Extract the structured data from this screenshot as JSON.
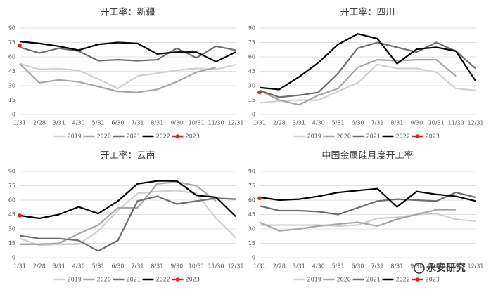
{
  "chart_data": [
    {
      "type": "line",
      "title": "开工率：新疆",
      "categories": [
        "1/31",
        "2/28",
        "3/31",
        "4/30",
        "5/31",
        "6/30",
        "7/31",
        "8/31",
        "9/30",
        "10/31",
        "11/30",
        "12/31"
      ],
      "ylim": [
        0,
        90
      ],
      "yticks": [
        0,
        15,
        30,
        45,
        60,
        75,
        90
      ],
      "grid": true,
      "series": [
        {
          "name": "2019",
          "color": "#d0d0d0",
          "values": [
            53,
            47,
            47.5,
            46,
            37,
            27,
            40,
            43,
            46,
            48,
            47,
            52
          ]
        },
        {
          "name": "2020",
          "color": "#a6a6a6",
          "values": [
            53,
            33,
            36,
            34,
            29,
            24,
            23,
            26,
            34,
            44,
            49,
            null
          ]
        },
        {
          "name": "2021",
          "color": "#6e6e6e",
          "values": [
            70,
            64,
            69,
            66,
            56,
            57,
            56,
            57,
            69,
            59,
            71,
            67
          ]
        },
        {
          "name": "2022",
          "color": "#000000",
          "values": [
            76,
            74,
            71,
            67,
            73,
            75,
            74,
            63,
            65,
            65,
            55,
            65
          ]
        },
        {
          "name": "2023",
          "color": "#e0201b",
          "marker": true,
          "values": [
            72,
            null,
            null,
            null,
            null,
            null,
            null,
            null,
            null,
            null,
            null,
            null
          ]
        }
      ]
    },
    {
      "type": "line",
      "title": "开工率：四川",
      "categories": [
        "1/31",
        "2/28",
        "3/31",
        "4/30",
        "5/31",
        "6/30",
        "7/31",
        "8/31",
        "9/30",
        "10/31",
        "11/30",
        "12/31"
      ],
      "ylim": [
        0,
        90
      ],
      "yticks": [
        0,
        15,
        30,
        45,
        60,
        75,
        90
      ],
      "grid": true,
      "series": [
        {
          "name": "2019",
          "color": "#d0d0d0",
          "values": [
            12,
            14,
            15,
            15,
            24,
            33,
            52,
            48,
            48,
            44,
            27,
            25
          ]
        },
        {
          "name": "2020",
          "color": "#a6a6a6",
          "values": [
            25,
            15,
            10,
            20,
            27,
            49,
            57,
            56,
            57,
            57,
            40,
            null
          ]
        },
        {
          "name": "2021",
          "color": "#6e6e6e",
          "values": [
            25,
            18,
            20,
            23,
            43,
            69,
            75,
            70,
            65,
            75,
            66,
            48
          ]
        },
        {
          "name": "2022",
          "color": "#000000",
          "values": [
            28,
            26,
            39,
            54,
            73,
            84,
            79,
            53,
            68,
            70,
            66,
            35
          ]
        },
        {
          "name": "2023",
          "color": "#e0201b",
          "marker": true,
          "values": [
            23,
            null,
            null,
            null,
            null,
            null,
            null,
            null,
            null,
            null,
            null,
            null
          ]
        }
      ]
    },
    {
      "type": "line",
      "title": "开工率：云南",
      "categories": [
        "1/31",
        "2/28",
        "3/31",
        "4/30",
        "5/31",
        "6/30",
        "7/31",
        "8/31",
        "9/30",
        "10/31",
        "11/30",
        "12/31"
      ],
      "ylim": [
        0,
        90
      ],
      "yticks": [
        0,
        15,
        30,
        45,
        60,
        75,
        90
      ],
      "grid": true,
      "series": [
        {
          "name": "2019",
          "color": "#d0d0d0",
          "values": [
            20,
            13,
            14,
            14,
            28,
            49,
            67,
            69,
            70,
            67,
            41,
            21
          ]
        },
        {
          "name": "2020",
          "color": "#a6a6a6",
          "values": [
            14,
            14,
            15,
            25,
            34,
            52,
            52,
            77,
            79,
            75,
            59,
            null
          ]
        },
        {
          "name": "2021",
          "color": "#6e6e6e",
          "values": [
            23,
            20,
            20,
            18,
            7,
            18,
            59,
            64,
            56,
            59,
            62,
            61
          ]
        },
        {
          "name": "2022",
          "color": "#000000",
          "values": [
            44,
            41,
            45,
            53,
            46,
            59,
            77,
            80,
            80,
            65,
            63,
            43
          ]
        },
        {
          "name": "2023",
          "color": "#e0201b",
          "marker": true,
          "values": [
            44,
            null,
            null,
            null,
            null,
            null,
            null,
            null,
            null,
            null,
            null,
            null
          ]
        }
      ]
    },
    {
      "type": "line",
      "title": "中国金属硅月度开工率",
      "categories": [
        "1/31",
        "2/28",
        "3/31",
        "4/30",
        "5/31",
        "6/30",
        "7/31",
        "8/31",
        "9/30",
        "10/31",
        "11/30",
        "12/31"
      ],
      "ylim": [
        0,
        90
      ],
      "yticks": [
        0,
        15,
        30,
        45,
        60,
        75,
        90
      ],
      "grid": true,
      "series": [
        {
          "name": "2019",
          "color": "#d0d0d0",
          "values": [
            34,
            34,
            34,
            34,
            33,
            34,
            41,
            42,
            45,
            46,
            40,
            38
          ]
        },
        {
          "name": "2020",
          "color": "#a6a6a6",
          "values": [
            37,
            28,
            30,
            33,
            35,
            37,
            33,
            40,
            45,
            50,
            50,
            null
          ]
        },
        {
          "name": "2021",
          "color": "#6e6e6e",
          "values": [
            54,
            49,
            49,
            48,
            45,
            52,
            59,
            61,
            60,
            59,
            68,
            63
          ]
        },
        {
          "name": "2022",
          "color": "#000000",
          "values": [
            63,
            60,
            61,
            64,
            68,
            70,
            72,
            53,
            69,
            66,
            64,
            59
          ]
        },
        {
          "name": "2023",
          "color": "#e0201b",
          "marker": true,
          "values": [
            62,
            null,
            null,
            null,
            null,
            null,
            null,
            null,
            null,
            null,
            null,
            null
          ]
        }
      ]
    }
  ],
  "watermark": "永安研究"
}
